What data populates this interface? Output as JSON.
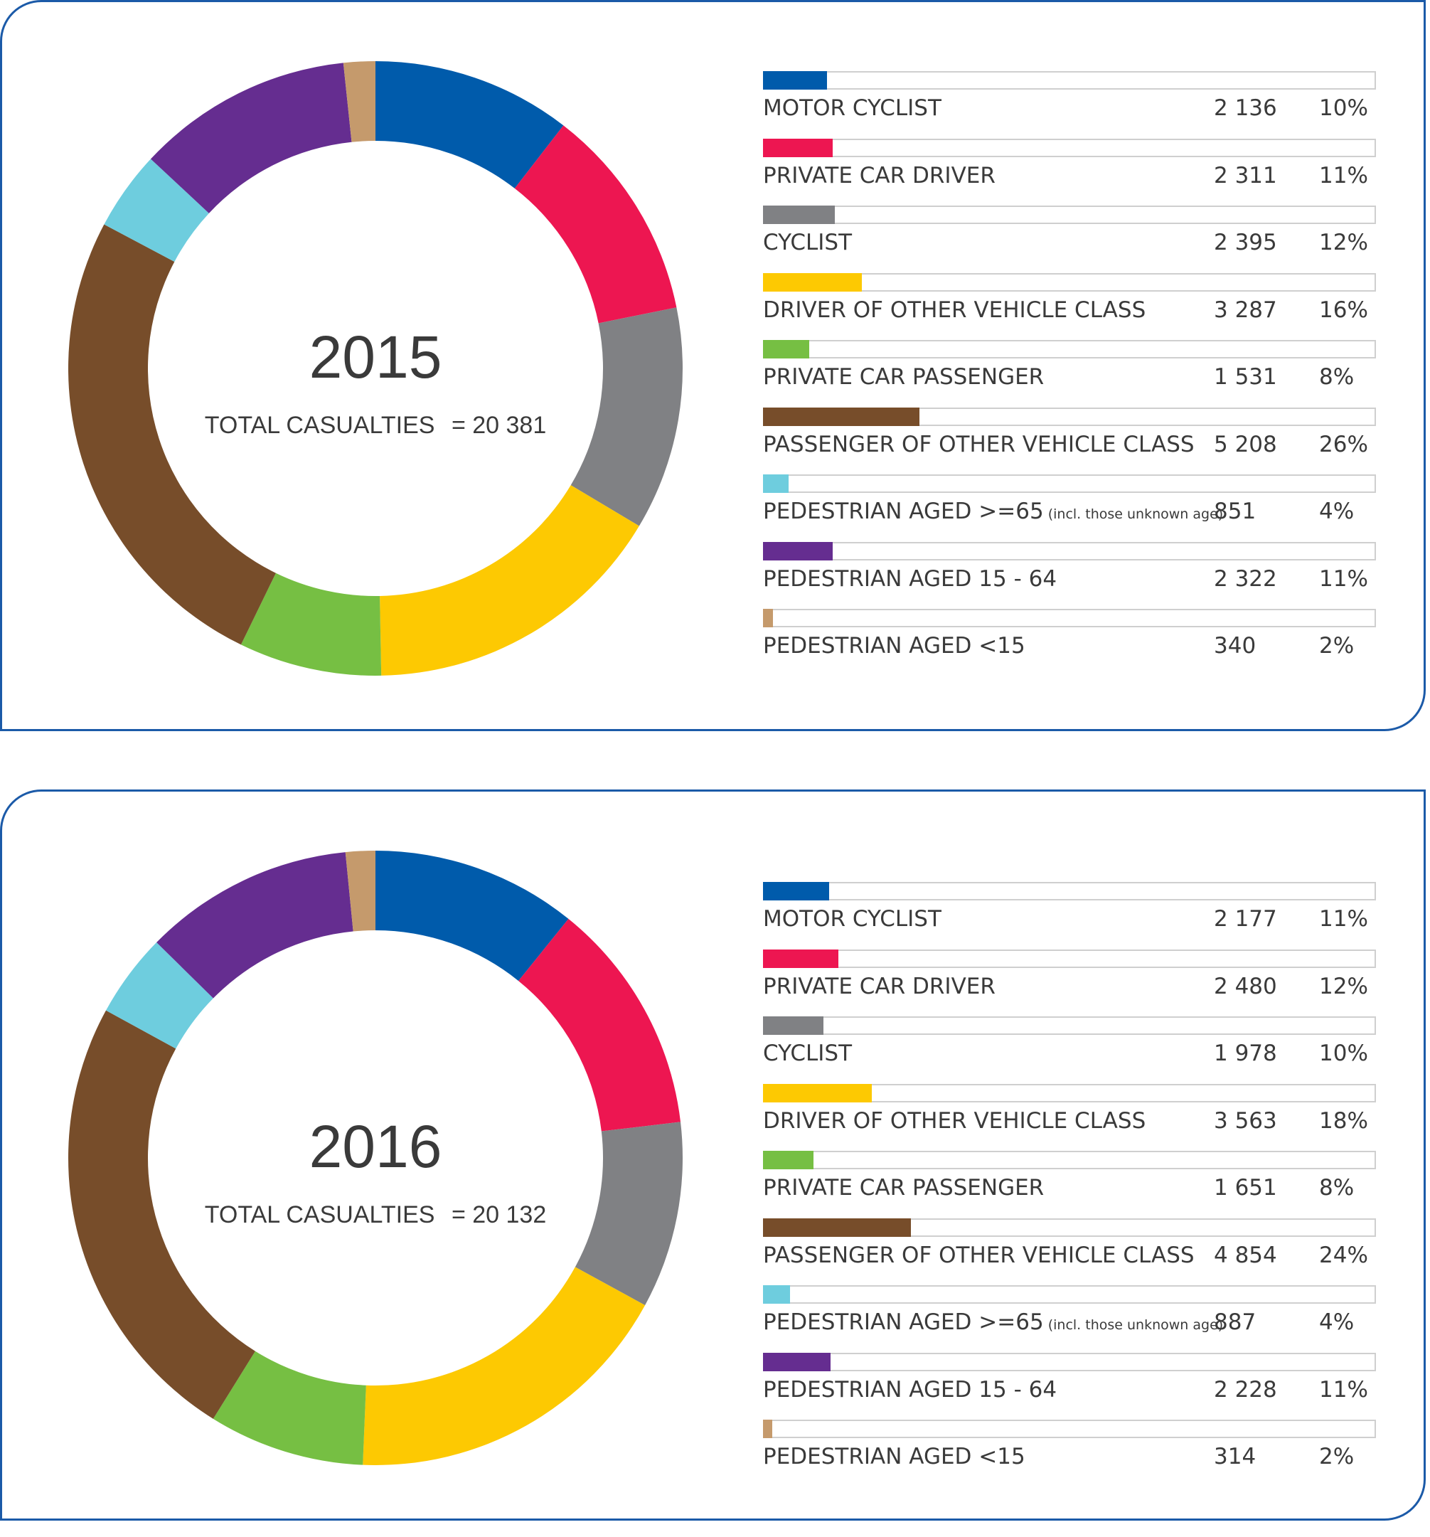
{
  "chart_data": [
    {
      "type": "pie",
      "title": "2015",
      "subtitle_label": "TOTAL CASUALTIES",
      "subtitle_value": "= 20 381",
      "total": 20381,
      "categories": [
        {
          "label": "MOTOR CYCLIST",
          "note": "",
          "value": 2136,
          "value_text": "2 136",
          "percent_text": "10%",
          "color": "#005bab"
        },
        {
          "label": "PRIVATE CAR DRIVER",
          "note": "",
          "value": 2311,
          "value_text": "2 311",
          "percent_text": "11%",
          "color": "#ed1651"
        },
        {
          "label": "CYCLIST",
          "note": "",
          "value": 2395,
          "value_text": "2 395",
          "percent_text": "12%",
          "color": "#808184"
        },
        {
          "label": "DRIVER OF OTHER VEHICLE CLASS",
          "note": "",
          "value": 3287,
          "value_text": "3 287",
          "percent_text": "16%",
          "color": "#fdc902"
        },
        {
          "label": "PRIVATE CAR PASSENGER",
          "note": "",
          "value": 1531,
          "value_text": "1 531",
          "percent_text": "8%",
          "color": "#76bf43"
        },
        {
          "label": "PASSENGER OF OTHER VEHICLE CLASS",
          "note": "",
          "value": 5208,
          "value_text": "5 208",
          "percent_text": "26%",
          "color": "#774d2a"
        },
        {
          "label": "PEDESTRIAN AGED >=65",
          "note": "(incl. those unknown age)",
          "value": 851,
          "value_text": "851",
          "percent_text": "4%",
          "color": "#6ecdde"
        },
        {
          "label": "PEDESTRIAN AGED 15 - 64",
          "note": "",
          "value": 2322,
          "value_text": "2 322",
          "percent_text": "11%",
          "color": "#652d90"
        },
        {
          "label": "PEDESTRIAN AGED <15",
          "note": "",
          "value": 340,
          "value_text": "340",
          "percent_text": "2%",
          "color": "#c59a6c"
        }
      ]
    },
    {
      "type": "pie",
      "title": "2016",
      "subtitle_label": "TOTAL CASUALTIES",
      "subtitle_value": "= 20 132",
      "total": 20132,
      "categories": [
        {
          "label": "MOTOR CYCLIST",
          "note": "",
          "value": 2177,
          "value_text": "2 177",
          "percent_text": "11%",
          "color": "#005bab"
        },
        {
          "label": "PRIVATE CAR DRIVER",
          "note": "",
          "value": 2480,
          "value_text": "2 480",
          "percent_text": "12%",
          "color": "#ed1651"
        },
        {
          "label": "CYCLIST",
          "note": "",
          "value": 1978,
          "value_text": "1 978",
          "percent_text": "10%",
          "color": "#808184"
        },
        {
          "label": "DRIVER OF OTHER VEHICLE CLASS",
          "note": "",
          "value": 3563,
          "value_text": "3 563",
          "percent_text": "18%",
          "color": "#fdc902"
        },
        {
          "label": "PRIVATE CAR PASSENGER",
          "note": "",
          "value": 1651,
          "value_text": "1 651",
          "percent_text": "8%",
          "color": "#76bf43"
        },
        {
          "label": "PASSENGER OF OTHER VEHICLE CLASS",
          "note": "",
          "value": 4854,
          "value_text": "4 854",
          "percent_text": "24%",
          "color": "#774d2a"
        },
        {
          "label": "PEDESTRIAN AGED >=65",
          "note": "(incl. those unknown age)",
          "value": 887,
          "value_text": "887",
          "percent_text": "4%",
          "color": "#6ecdde"
        },
        {
          "label": "PEDESTRIAN AGED 15 - 64",
          "note": "",
          "value": 2228,
          "value_text": "2 228",
          "percent_text": "11%",
          "color": "#652d90"
        },
        {
          "label": "PEDESTRIAN AGED <15",
          "note": "",
          "value": 314,
          "value_text": "314",
          "percent_text": "2%",
          "color": "#c59a6c"
        }
      ]
    }
  ]
}
